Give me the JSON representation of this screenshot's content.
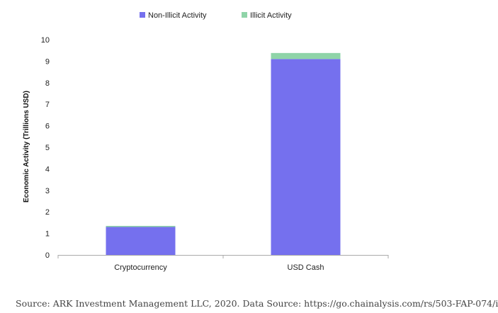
{
  "colors": {
    "non_illicit": "#7570ee",
    "illicit": "#8fd4a8",
    "axis": "#aaaaaa"
  },
  "chart_data": {
    "type": "bar",
    "stacked": true,
    "title": "",
    "categories": [
      "Cryptocurrency",
      "USD Cash"
    ],
    "series": [
      {
        "name": "Non-Illicit Activity",
        "values": [
          1.3,
          9.1
        ]
      },
      {
        "name": "Illicit Activity",
        "values": [
          0.05,
          0.28
        ]
      }
    ],
    "xlabel": "",
    "ylabel": "Economic Activity (Trillions USD)",
    "ylim": [
      0,
      10
    ],
    "yticks": [
      0,
      1,
      2,
      3,
      4,
      5,
      6,
      7,
      8,
      9,
      10
    ],
    "grid": false,
    "legend_position": "top-center"
  },
  "source_text": "Source: ARK Investment Management LLC, 2020. Data Source: https://go.chainalysis.com/rs/503-FAP-074/i"
}
